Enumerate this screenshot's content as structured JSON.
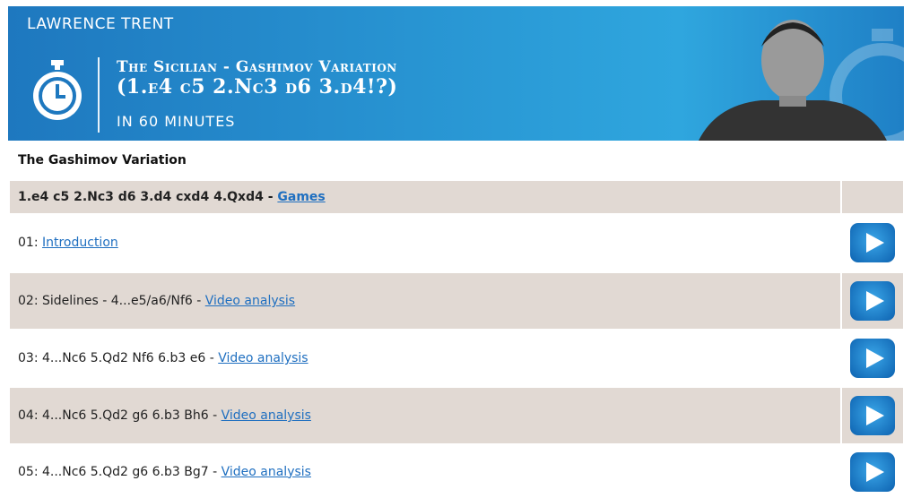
{
  "banner": {
    "author": "LAWRENCE TRENT",
    "title_line1": "The Sicilian - Gashimov Variation",
    "title_line2": "(1.e4 c5 2.Nc3 d6 3.d4!?)",
    "subtitle": "IN 60 MINUTES",
    "icon": "stopwatch-icon",
    "color": "#2a9ad6"
  },
  "section_title": "The Gashimov Variation",
  "header_row": {
    "text": "1.e4 c5 2.Nc3 d6 3.d4 cxd4 4.Qxd4 - ",
    "link": "Games"
  },
  "rows": [
    {
      "text": "01: ",
      "link": "Introduction"
    },
    {
      "text": "02: Sidelines - 4...e5/a6/Nf6 - ",
      "link": "Video analysis"
    },
    {
      "text": "03: 4...Nc6 5.Qd2 Nf6 6.b3 e6 - ",
      "link": "Video analysis"
    },
    {
      "text": "04: 4...Nc6 5.Qd2 g6 6.b3 Bh6 - ",
      "link": "Video analysis"
    },
    {
      "text": "05: 4...Nc6 5.Qd2 g6 6.b3 Bg7 - ",
      "link": "Video analysis"
    }
  ]
}
